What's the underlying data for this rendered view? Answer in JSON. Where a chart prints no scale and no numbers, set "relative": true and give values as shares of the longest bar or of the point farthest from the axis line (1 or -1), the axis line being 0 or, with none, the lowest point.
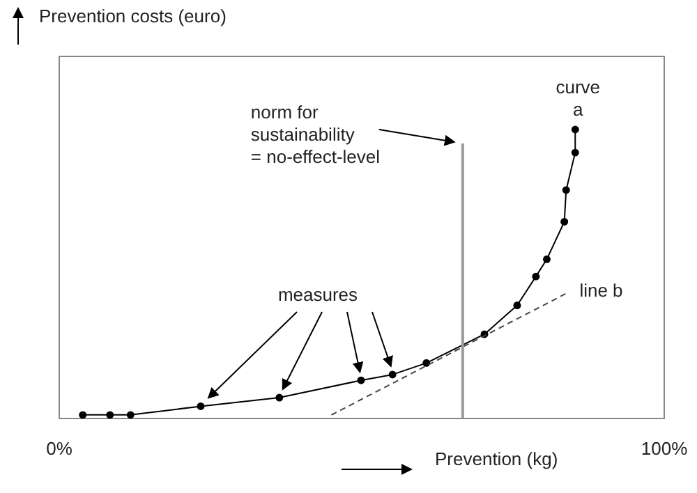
{
  "chart_data": {
    "type": "line",
    "relative": true,
    "xlabel": "Prevention (kg)",
    "xlim": [
      0,
      100
    ],
    "xticks": [
      {
        "value": 0,
        "label": "0%"
      },
      {
        "value": 100,
        "label": "100%"
      }
    ],
    "grid": false,
    "series": [
      {
        "name": "curve a",
        "color": "#000000",
        "marker": "circle",
        "line_style": "solid",
        "x": [
          4.0,
          8.5,
          11.9,
          23.5,
          36.5,
          50.0,
          55.2,
          60.8,
          70.4,
          75.8,
          78.9,
          80.7,
          83.6,
          83.9,
          85.4,
          85.4
        ],
        "values": [
          0.01,
          0.01,
          0.01,
          0.04,
          0.07,
          0.13,
          0.15,
          0.19,
          0.29,
          0.39,
          0.49,
          0.55,
          0.68,
          0.79,
          0.92,
          1.0
        ]
      },
      {
        "name": "line b",
        "color": "#444444",
        "marker": "none",
        "line_style": "dashed",
        "x": [
          45.1,
          83.8
        ],
        "values": [
          0.01,
          0.43
        ]
      }
    ],
    "ref_lines": [
      {
        "axis": "x",
        "value": 66.8,
        "label": "norm for sustainability = no-effect-level",
        "color": "#999999"
      }
    ],
    "annotations": [
      "Prevention costs (euro)",
      "measures"
    ]
  }
}
